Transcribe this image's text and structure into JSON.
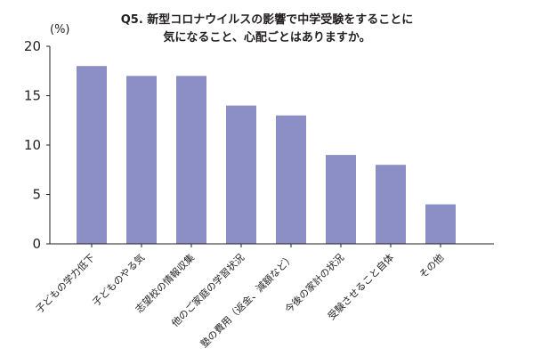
{
  "chart_data": {
    "type": "bar",
    "title_lines": [
      "Q5. 新型コロナウイルスの影響で中学受験をすることに",
      "気になること、心配ごとはありますか。"
    ],
    "unit": "(%)",
    "categories": [
      "子どもの学力低下",
      "子どものやる気",
      "志望校の情報収集",
      "他のご家庭の学習状況",
      "塾の費用（返金、減額など）",
      "今後の家計の状況",
      "受験させること自体",
      "その他"
    ],
    "values": [
      18,
      17,
      17,
      14,
      13,
      9,
      8,
      4
    ],
    "ylim": [
      0,
      20
    ],
    "yticks": [
      0,
      5,
      10,
      15,
      20
    ],
    "bar_color": "#8c8fc6",
    "grid": false
  }
}
